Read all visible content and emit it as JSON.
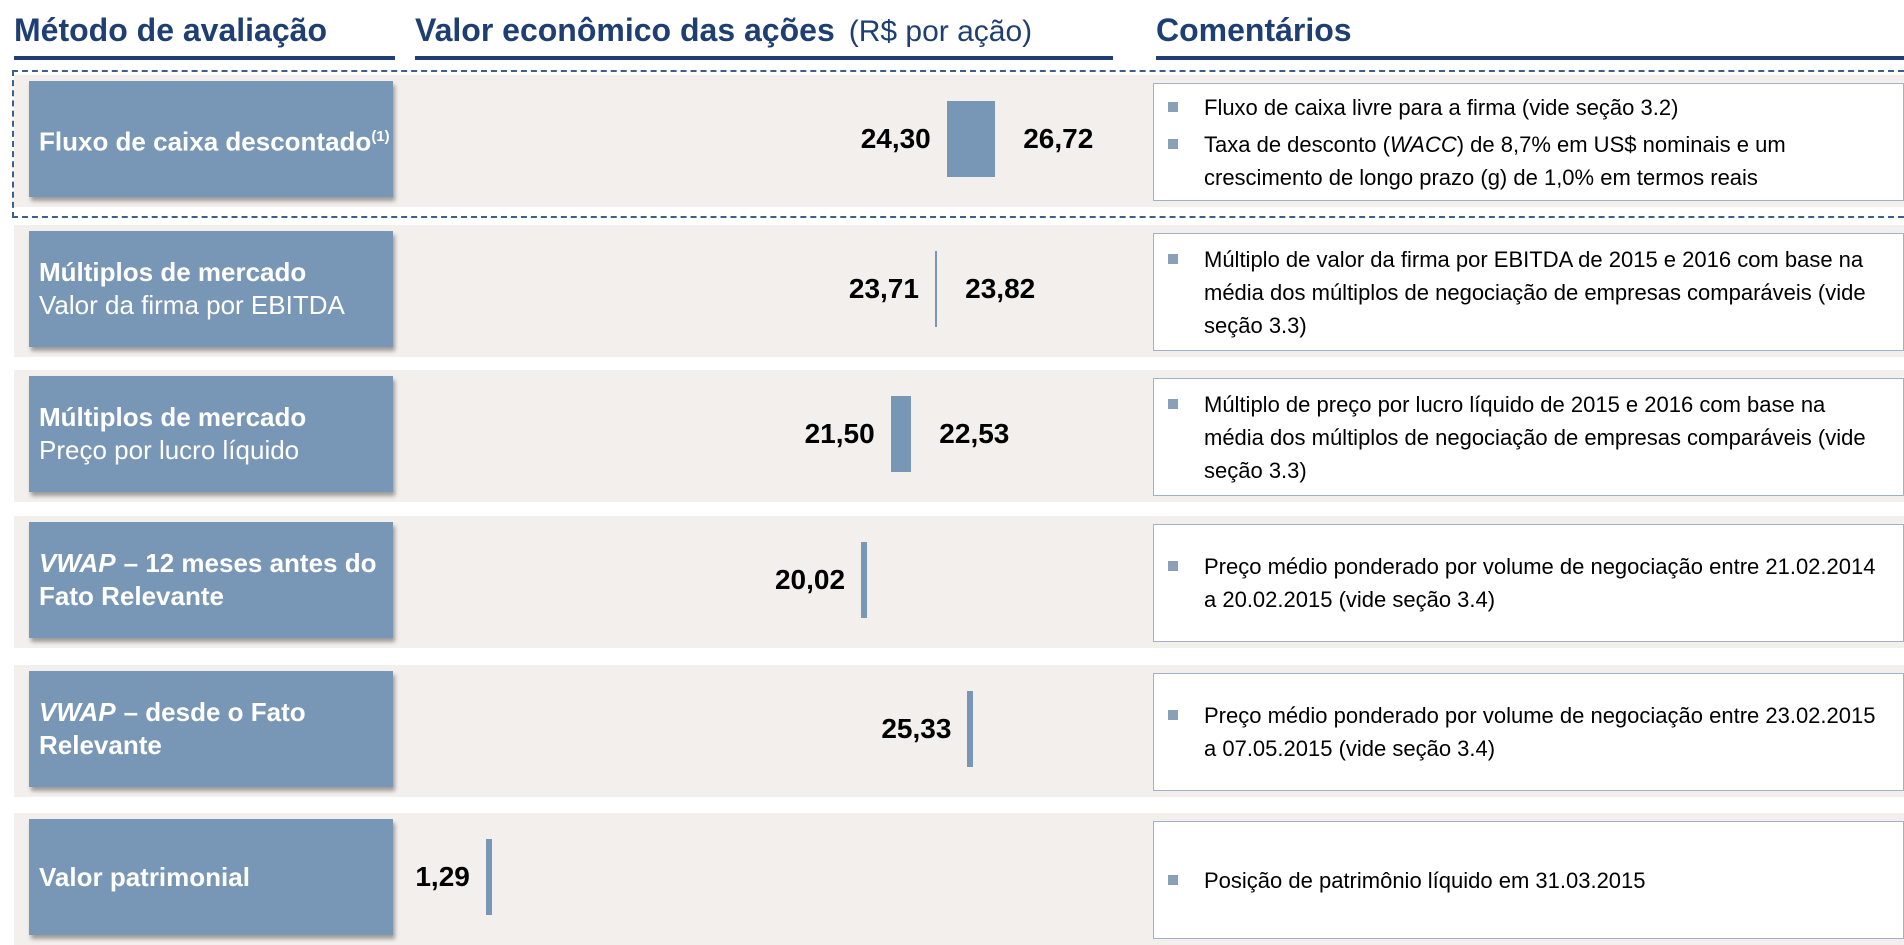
{
  "chart_data": {
    "type": "bar",
    "headers": {
      "method": "Método de avaliação",
      "value": "Valor econômico das ações",
      "unit": "(R$ por ação)",
      "comments": "Comentários"
    },
    "xlim": [
      0,
      32
    ],
    "color": "#7896b5",
    "rows": [
      {
        "title": "Fluxo de caixa descontado",
        "note": "(1)",
        "values": [
          24.3,
          26.72
        ],
        "value_labels": [
          "24,30",
          "26,72"
        ],
        "highlight": true,
        "comments": [
          [
            "Fluxo de caixa livre para a firma (vide seção 3.2)"
          ],
          [
            "Taxa de desconto (",
            "WACC",
            ") de 8,7% em US$ nominais e um crescimento de longo prazo (g) de 1,0% em termos reais"
          ]
        ]
      },
      {
        "title": "Múltiplos de mercado",
        "subtitle": "Valor da firma por EBITDA",
        "values": [
          23.71,
          23.82
        ],
        "value_labels": [
          "23,71",
          "23,82"
        ],
        "comments": [
          [
            "Múltiplo de valor da firma por EBITDA de 2015 e 2016 com base na média dos múltiplos de negociação de empresas comparáveis (vide seção 3.3)"
          ]
        ]
      },
      {
        "title": "Múltiplos de mercado",
        "subtitle": "Preço por lucro líquido",
        "values": [
          21.5,
          22.53
        ],
        "value_labels": [
          "21,50",
          "22,53"
        ],
        "comments": [
          [
            "Múltiplo de preço por lucro líquido de 2015 e 2016 com base na média dos múltiplos de negociação de empresas comparáveis (vide seção 3.3)"
          ]
        ]
      },
      {
        "title_italic": "VWAP",
        "title": "– 12 meses antes do Fato Relevante",
        "values": [
          20.02
        ],
        "value_labels": [
          "20,02"
        ],
        "comments": [
          [
            "Preço médio ponderado por volume de negociação entre 21.02.2014 a 20.02.2015 (vide seção 3.4)"
          ]
        ]
      },
      {
        "title_italic": "VWAP",
        "title": "– desde o Fato Relevante",
        "values": [
          25.33
        ],
        "value_labels": [
          "25,33"
        ],
        "comments": [
          [
            "Preço médio ponderado por volume de negociação entre 23.02.2015 a 07.05.2015 (vide seção 3.4)"
          ]
        ]
      },
      {
        "title": "Valor patrimonial",
        "values": [
          1.29
        ],
        "value_labels": [
          "1,29"
        ],
        "comments": [
          [
            "Posição de patrimônio líquido em 31.03.2015"
          ]
        ]
      }
    ]
  }
}
